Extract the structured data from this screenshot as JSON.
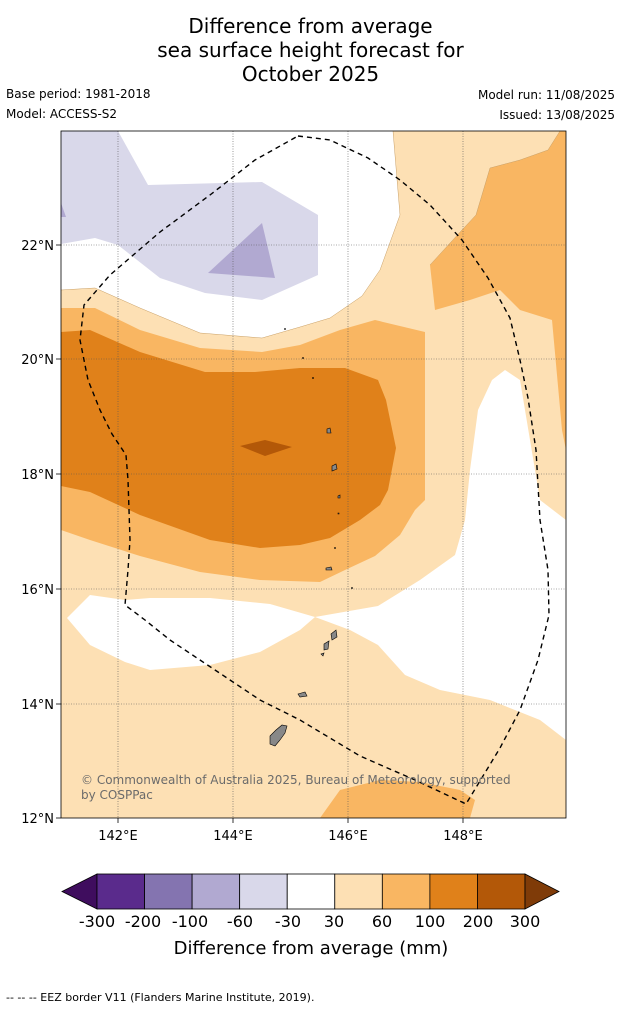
{
  "title": {
    "line1": "Difference from average",
    "line2": "sea surface height forecast for",
    "line3": "October 2025"
  },
  "meta": {
    "base_period": "Base period: 1981-2018",
    "model": "Model: ACCESS-S2",
    "model_run": "Model run: 11/08/2025",
    "issued": "Issued: 13/08/2025"
  },
  "map": {
    "lat_ticks": [
      "22°N",
      "20°N",
      "18°N",
      "16°N",
      "14°N",
      "12°N"
    ],
    "lon_ticks": [
      "142°E",
      "144°E",
      "146°E",
      "148°E"
    ],
    "copyright_line1": "© Commonwealth of Australia 2025, Bureau of Meteorology, supported",
    "copyright_line2": "by COSPPac",
    "lat_range": [
      12,
      24
    ],
    "lon_range": [
      141,
      149.8
    ]
  },
  "colorbar": {
    "labels": [
      "-300",
      "-200",
      "-100",
      "-60",
      "-30",
      "30",
      "60",
      "100",
      "200",
      "300"
    ],
    "colors": [
      "#3f0d5e",
      "#5a2b8c",
      "#8474b0",
      "#b1a9d1",
      "#d9d8ea",
      "#ffffff",
      "#fde0b4",
      "#f9b662",
      "#e0811a",
      "#b35808",
      "#7f3b08"
    ],
    "title": "Difference from average (mm)"
  },
  "footnote": "--  --  -- EEZ border V11 (Flanders Marine Institute, 2019)."
}
